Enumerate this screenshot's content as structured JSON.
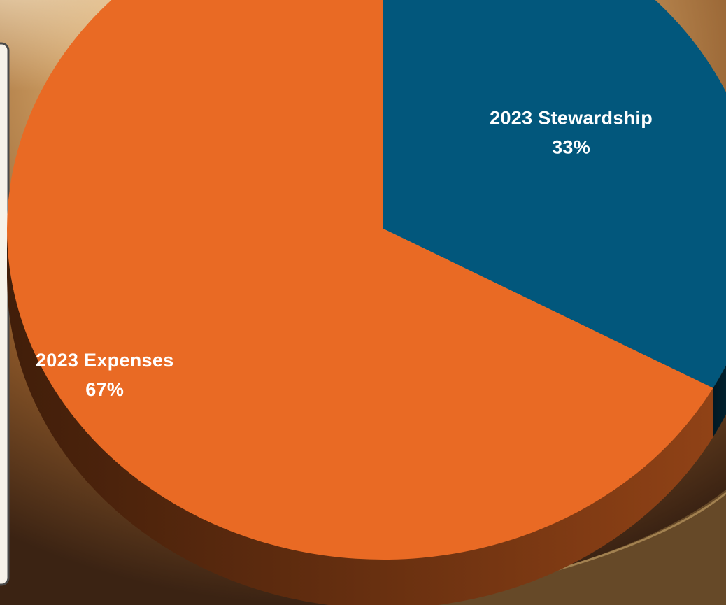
{
  "colors": {
    "expenses": "#e96a24",
    "stewardship": "#02577c",
    "panel_border": "#4a4a4a",
    "panel_fill": "#f6f2ea"
  },
  "chart_data": {
    "type": "pie",
    "title": "",
    "series": [
      {
        "values": [
          {
            "label": "2023 Stewardship",
            "value": 33,
            "display": "33%",
            "color": "#02577c"
          },
          {
            "label": "2023 Expenses",
            "value": 67,
            "display": "67%",
            "color": "#e96a24"
          }
        ]
      }
    ],
    "style": "3d-tilted",
    "legend": "none"
  }
}
